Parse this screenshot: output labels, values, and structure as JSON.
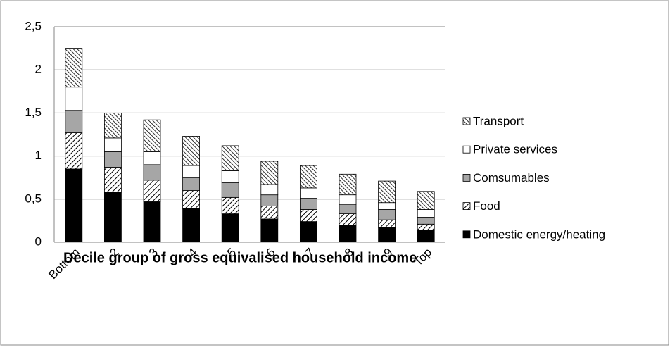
{
  "chart_data": {
    "type": "stacked-bar",
    "x_label": "Decile group of gross equivalised household income",
    "categories": [
      "Bottom",
      "2",
      "3",
      "4",
      "5",
      "6",
      "7",
      "8",
      "9",
      "Top"
    ],
    "series": [
      {
        "name": "Domestic energy/heating",
        "color": "#000000",
        "values": [
          0.85,
          0.58,
          0.47,
          0.39,
          0.33,
          0.27,
          0.24,
          0.2,
          0.17,
          0.14
        ]
      },
      {
        "name": "Food",
        "color": "#000000",
        "pattern": "forward-hatch",
        "values": [
          0.42,
          0.29,
          0.25,
          0.21,
          0.19,
          0.15,
          0.14,
          0.13,
          0.09,
          0.07
        ]
      },
      {
        "name": "Comsumables",
        "color": "#a6a6a6",
        "values": [
          0.26,
          0.18,
          0.18,
          0.15,
          0.17,
          0.13,
          0.13,
          0.11,
          0.12,
          0.08
        ]
      },
      {
        "name": "Private services",
        "color": "#ffffff",
        "values": [
          0.27,
          0.16,
          0.15,
          0.14,
          0.14,
          0.12,
          0.12,
          0.11,
          0.08,
          0.09
        ]
      },
      {
        "name": "Transport",
        "color": "#000000",
        "pattern": "back-hatch",
        "values": [
          0.45,
          0.29,
          0.37,
          0.34,
          0.29,
          0.27,
          0.26,
          0.24,
          0.25,
          0.21
        ]
      }
    ],
    "ylim": [
      0,
      2.5
    ],
    "yticks": [
      0,
      {
        "value": 0.5,
        "label": "0,5"
      },
      1,
      {
        "value": 1.5,
        "label": "1,5"
      },
      2,
      {
        "value": 2.5,
        "label": "2,5"
      }
    ],
    "grid": true,
    "legend": "right"
  }
}
